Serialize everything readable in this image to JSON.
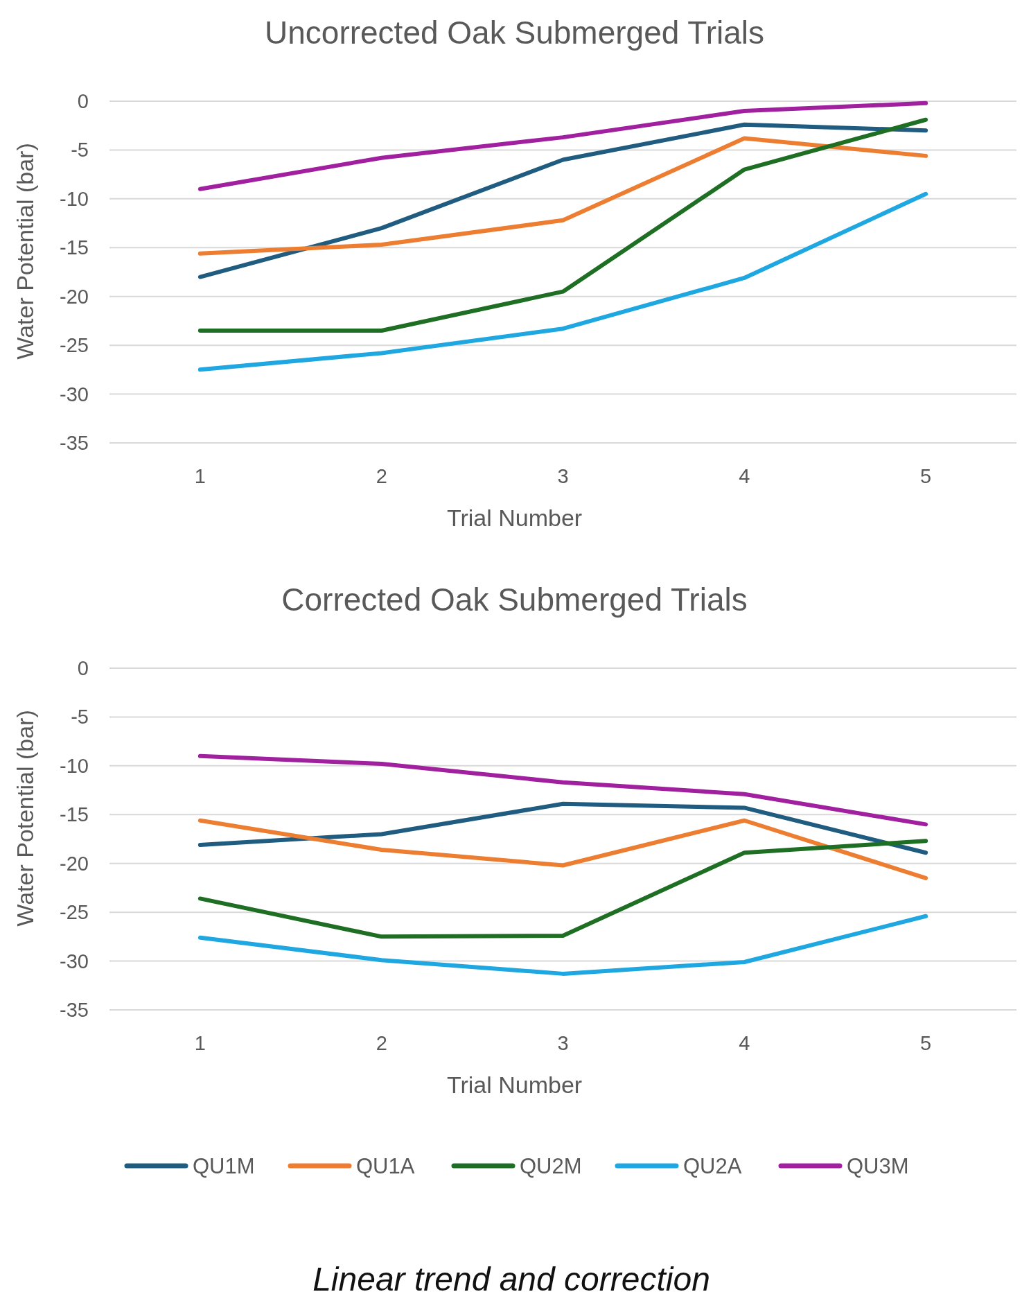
{
  "chart_data": [
    {
      "type": "line",
      "title": "Uncorrected Oak Submerged Trials",
      "xlabel": "Trial Number",
      "ylabel": "Water Potential (bar)",
      "categories": [
        "1",
        "2",
        "3",
        "4",
        "5"
      ],
      "ylim": [
        -35,
        0
      ],
      "yticks": [
        -35,
        -30,
        -25,
        -20,
        -15,
        -10,
        -5,
        0
      ],
      "grid": "y",
      "legend": false,
      "series": [
        {
          "color": "#1f5c80",
          "values": [
            -18,
            -13,
            -6,
            -2.4,
            -3
          ]
        },
        {
          "color": "#ed7d31",
          "values": [
            -15.6,
            -14.7,
            -12.2,
            -3.8,
            -5.6
          ]
        },
        {
          "color": "#1e6e23",
          "values": [
            -23.5,
            -23.5,
            -19.5,
            -7,
            -1.9
          ]
        },
        {
          "color": "#1ea7e0",
          "values": [
            -27.5,
            -25.8,
            -23.3,
            -18.1,
            -9.5
          ]
        },
        {
          "color": "#a020a0",
          "values": [
            -9,
            -5.8,
            -3.7,
            -1,
            -0.2
          ]
        }
      ]
    },
    {
      "type": "line",
      "title": "Corrected Oak Submerged Trials",
      "xlabel": "Trial Number",
      "ylabel": "Water Potential (bar)",
      "categories": [
        "1",
        "2",
        "3",
        "4",
        "5"
      ],
      "ylim": [
        -35,
        0
      ],
      "yticks": [
        -35,
        -30,
        -25,
        -20,
        -15,
        -10,
        -5,
        0
      ],
      "grid": "y",
      "legend": "bottom",
      "annotations": [
        "Linear trend and correction"
      ],
      "series": [
        {
          "name": "QU1M",
          "color": "#1f5c80",
          "values": [
            -18.1,
            -17,
            -13.9,
            -14.3,
            -18.9
          ]
        },
        {
          "name": "QU1A",
          "color": "#ed7d31",
          "values": [
            -15.6,
            -18.6,
            -20.2,
            -15.6,
            -21.5
          ]
        },
        {
          "name": "QU2M",
          "color": "#1e6e23",
          "values": [
            -23.6,
            -27.5,
            -27.4,
            -18.9,
            -17.7
          ]
        },
        {
          "name": "QU2A",
          "color": "#1ea7e0",
          "values": [
            -27.6,
            -29.9,
            -31.3,
            -30.1,
            -25.4
          ]
        },
        {
          "name": "QU3M",
          "color": "#a020a0",
          "values": [
            -9,
            -9.8,
            -11.7,
            -12.9,
            -16
          ]
        }
      ]
    }
  ]
}
